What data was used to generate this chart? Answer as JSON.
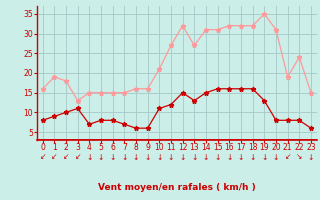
{
  "hours": [
    0,
    1,
    2,
    3,
    4,
    5,
    6,
    7,
    8,
    9,
    10,
    11,
    12,
    13,
    14,
    15,
    16,
    17,
    18,
    19,
    20,
    21,
    22,
    23
  ],
  "wind_avg": [
    8,
    9,
    10,
    11,
    7,
    8,
    8,
    7,
    6,
    6,
    11,
    12,
    15,
    13,
    15,
    16,
    16,
    16,
    16,
    13,
    8,
    8,
    8,
    6
  ],
  "wind_gust": [
    16,
    19,
    18,
    13,
    15,
    15,
    15,
    15,
    16,
    16,
    21,
    27,
    32,
    27,
    31,
    31,
    32,
    32,
    32,
    35,
    31,
    19,
    24,
    15
  ],
  "wind_dir_arrows": [
    "↙",
    "↙",
    "↙",
    "↙",
    "↓",
    "↓",
    "↓",
    "↓",
    "↓",
    "↓",
    "↓",
    "↓",
    "↓",
    "↓",
    "↓",
    "↓",
    "↓",
    "↓",
    "↓",
    "↓",
    "↓",
    "↙",
    "↘",
    "↓"
  ],
  "ylim": [
    3,
    37
  ],
  "yticks": [
    5,
    10,
    15,
    20,
    25,
    30,
    35
  ],
  "xlim": [
    -0.5,
    23.5
  ],
  "xlabel": "Vent moyen/en rafales ( km/h )",
  "bg_color": "#cceee8",
  "grid_color": "#aacccc",
  "avg_color": "#cc0000",
  "gust_color": "#ff9999",
  "arrow_color": "#cc0000",
  "axis_color": "#cc0000",
  "label_color": "#cc0000",
  "tick_fontsize": 5.5,
  "xlabel_fontsize": 6.5
}
